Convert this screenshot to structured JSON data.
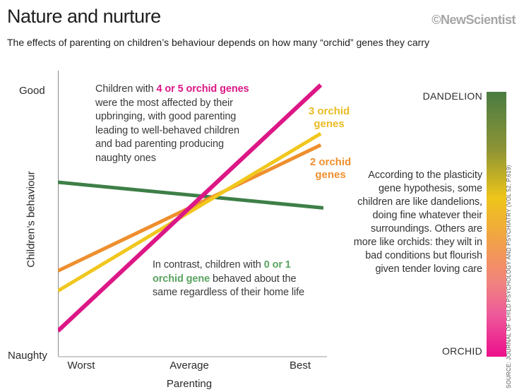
{
  "header": {
    "title": "Nature and nurture",
    "brand": "©NewScientist",
    "subtitle": "The effects of parenting on children’s behaviour depends on how many “orchid” genes they carry"
  },
  "chart_data": {
    "type": "line",
    "title": "Nature and nurture",
    "xlabel": "Parenting",
    "ylabel": "Children’s behaviour",
    "x_ticks": [
      "Worst",
      "Average",
      "Best"
    ],
    "y_ticks": [
      "Naughty",
      "Good"
    ],
    "x_range": [
      0,
      100
    ],
    "y_range": [
      0,
      100
    ],
    "grid": false,
    "series": [
      {
        "name": "0 or 1 orchid genes",
        "color": "#3e7f47",
        "width": 5,
        "x": [
          0,
          100
        ],
        "values": [
          61,
          52
        ]
      },
      {
        "name": "2 orchid genes",
        "color": "#ee8f2e",
        "width": 5,
        "x": [
          0,
          99
        ],
        "values": [
          30,
          74
        ]
      },
      {
        "name": "3 orchid genes",
        "color": "#f1c71e",
        "width": 5,
        "x": [
          0,
          99
        ],
        "values": [
          23,
          78
        ]
      },
      {
        "name": "4 or 5 orchid genes",
        "color": "#dc1786",
        "width": 6,
        "x": [
          0,
          99
        ],
        "values": [
          9,
          95
        ]
      }
    ]
  },
  "annotations": {
    "high": {
      "pre": "Children with ",
      "highlight": "4 or 5 orchid genes",
      "highlight_color": "#dc1786",
      "post": "\nwere the most affected by their\nupbringing, with good parenting\nleading to well-behaved children\nand bad parenting producing\nnaughty ones"
    },
    "low": {
      "pre": "In contrast, children with ",
      "highlight": "0 or 1\norchid gene",
      "highlight_color": "#5aa360",
      "post": " behaved about the\nsame regardless of their home life"
    }
  },
  "line_labels": [
    {
      "text": "3 orchid\ngenes",
      "color": "#eabc23"
    },
    {
      "text": "2 orchid\ngenes",
      "color": "#ef8f2e"
    }
  ],
  "right_panel": {
    "dandelion": "DANDELION",
    "orchid": "ORCHID",
    "paragraph": "According to the plasticity\ngene hypothesis, some\nchildren are like dandelions,\ndoing fine whatever their\nsurroundings. Others are\nmore like orchids: they wilt in\nbad conditions but flourish\ngiven tender loving care",
    "gradient_stops": [
      "#4a7c43 0%",
      "#8e9434 22%",
      "#eec51a 40%",
      "#f0ab3a 52%",
      "#f2935f 63%",
      "#f1837e 72%",
      "#ee5a9a 84%",
      "#ec0f8c 100%"
    ]
  },
  "source": "SOURCE: JOURNAL OF CHILD PSYCHOLOGY AND PSYCHIATRY (VOL 52, P.619)"
}
